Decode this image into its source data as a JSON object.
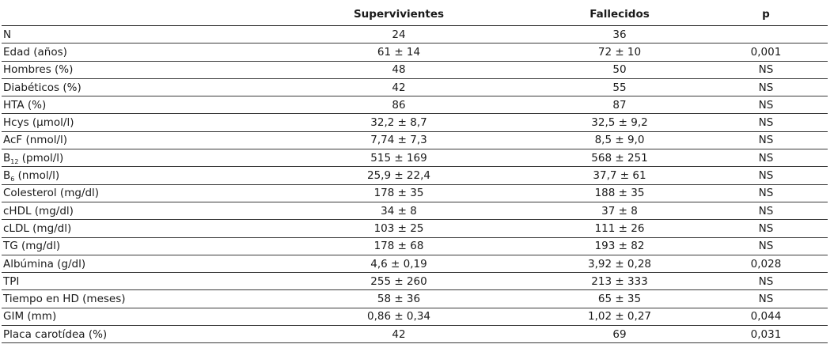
{
  "header": {
    "col0": "",
    "col1": "Supervivientes",
    "col2": "Fallecidos",
    "col3": "p"
  },
  "rows": [
    {
      "label": "N",
      "label_sub": "",
      "label_rest": "",
      "surv": "24",
      "dead": "36",
      "p": ""
    },
    {
      "label": "Edad (años)",
      "label_sub": "",
      "label_rest": "",
      "surv": "61 ± 14",
      "dead": "72 ± 10",
      "p": "0,001"
    },
    {
      "label": "Hombres (%)",
      "label_sub": "",
      "label_rest": "",
      "surv": "48",
      "dead": "50",
      "p": "NS"
    },
    {
      "label": "Diabéticos (%)",
      "label_sub": "",
      "label_rest": "",
      "surv": "42",
      "dead": "55",
      "p": "NS"
    },
    {
      "label": "HTA (%)",
      "label_sub": "",
      "label_rest": "",
      "surv": "86",
      "dead": "87",
      "p": "NS"
    },
    {
      "label": "Hcys (μmol/l)",
      "label_sub": "",
      "label_rest": "",
      "surv": "32,2 ± 8,7",
      "dead": "32,5 ± 9,2",
      "p": "NS"
    },
    {
      "label": "AcF (nmol/l)",
      "label_sub": "",
      "label_rest": "",
      "surv": "7,74 ± 7,3",
      "dead": "8,5 ± 9,0",
      "p": "NS"
    },
    {
      "label": "B",
      "label_sub": "12",
      "label_rest": " (pmol/l)",
      "surv": "515 ± 169",
      "dead": "568 ± 251",
      "p": "NS"
    },
    {
      "label": "B",
      "label_sub": "6",
      "label_rest": " (nmol/l)",
      "surv": "25,9 ± 22,4",
      "dead": "37,7 ± 61",
      "p": "NS"
    },
    {
      "label": "Colesterol (mg/dl)",
      "label_sub": "",
      "label_rest": "",
      "surv": "178 ± 35",
      "dead": "188 ± 35",
      "p": "NS"
    },
    {
      "label": "cHDL (mg/dl)",
      "label_sub": "",
      "label_rest": "",
      "surv": "34 ± 8",
      "dead": "37 ± 8",
      "p": "NS"
    },
    {
      "label": "cLDL (mg/dl)",
      "label_sub": "",
      "label_rest": "",
      "surv": "103 ± 25",
      "dead": "111 ± 26",
      "p": "NS"
    },
    {
      "label": "TG (mg/dl)",
      "label_sub": "",
      "label_rest": "",
      "surv": "178 ± 68",
      "dead": "193 ± 82",
      "p": "NS"
    },
    {
      "label": "Albúmina (g/dl)",
      "label_sub": "",
      "label_rest": "",
      "surv": "4,6 ± 0,19",
      "dead": "3,92 ± 0,28",
      "p": "0,028"
    },
    {
      "label": "TPI",
      "label_sub": "",
      "label_rest": "",
      "surv": "255 ± 260",
      "dead": "213 ± 333",
      "p": "NS"
    },
    {
      "label": "Tiempo en HD (meses)",
      "label_sub": "",
      "label_rest": "",
      "surv": "58 ± 36",
      "dead": "65 ± 35",
      "p": "NS"
    },
    {
      "label": "GIM (mm)",
      "label_sub": "",
      "label_rest": "",
      "surv": "0,86 ± 0,34",
      "dead": "1,02 ± 0,27",
      "p": "0,044"
    },
    {
      "label": "Placa carotídea (%)",
      "label_sub": "",
      "label_rest": "",
      "surv": "42",
      "dead": "69",
      "p": "0,031"
    }
  ]
}
